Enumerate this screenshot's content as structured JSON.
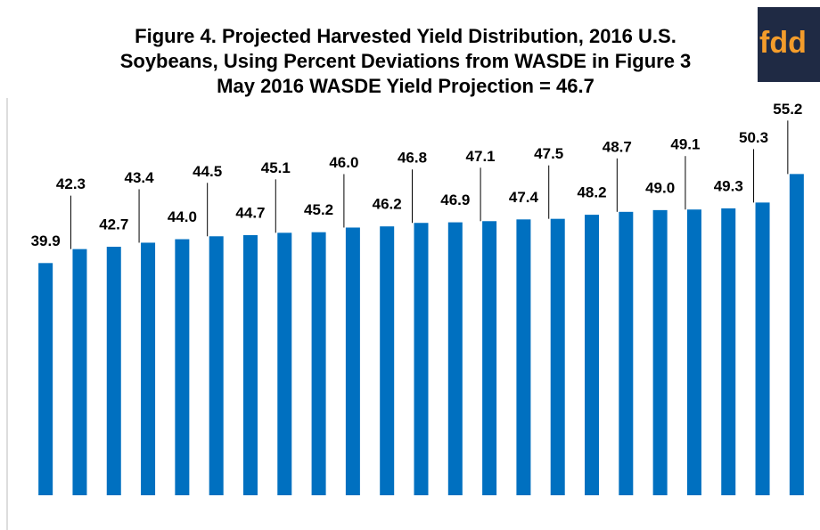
{
  "chart_data": {
    "type": "bar",
    "title": [
      "Figure 4. Projected Harvested Yield Distribution, 2016 U.S.",
      "Soybeans, Using Percent Deviations from WASDE in Figure 3",
      "May 2016 WASDE Yield Projection = 46.7"
    ],
    "logo": "fdd",
    "values": [
      39.9,
      42.3,
      42.7,
      43.4,
      44.0,
      44.5,
      44.7,
      45.1,
      45.2,
      46.0,
      46.2,
      46.8,
      46.9,
      47.1,
      47.4,
      47.5,
      48.2,
      48.7,
      49.0,
      49.1,
      49.3,
      50.3,
      55.2
    ],
    "value_labels": [
      "39.9",
      "42.3",
      "42.7",
      "43.4",
      "44.0",
      "44.5",
      "44.7",
      "45.1",
      "45.2",
      "46.0",
      "46.2",
      "46.8",
      "46.9",
      "47.1",
      "47.4",
      "47.5",
      "48.2",
      "48.7",
      "49.0",
      "49.1",
      "49.3",
      "50.3",
      "55.2"
    ],
    "color": "#0070c0",
    "ylim": [
      0,
      60
    ]
  }
}
